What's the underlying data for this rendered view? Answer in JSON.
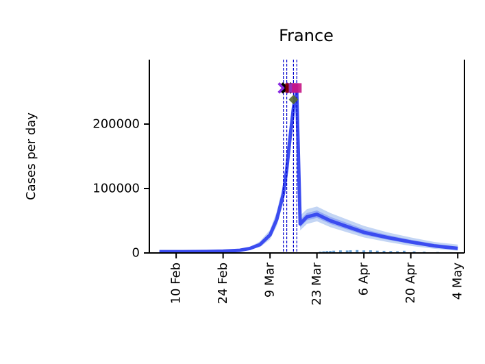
{
  "chart_data": {
    "type": "line",
    "title": "France",
    "xlabel": "",
    "ylabel": "Cases per day",
    "xlim": [
      "2020-02-02",
      "2020-05-06"
    ],
    "ylim": [
      0,
      300000
    ],
    "x_ticks": [
      "2020-02-10",
      "2020-02-24",
      "2020-03-09",
      "2020-03-23",
      "2020-04-06",
      "2020-04-20",
      "2020-05-04"
    ],
    "x_tick_labels": [
      "10 Feb",
      "24 Feb",
      "9 Mar",
      "23 Mar",
      "6 Apr",
      "20 Apr",
      "4 May"
    ],
    "y_ticks": [
      0,
      100000,
      200000
    ],
    "y_tick_labels": [
      "0",
      "100000",
      "200000"
    ],
    "colors": {
      "median_line": "#3b4cf0",
      "inner_band": "#8aa0f5",
      "outer_band": "#bcd0f3",
      "observed_bars": "#6aa3d8",
      "intervention_lines": "#0000cc"
    },
    "series": [
      {
        "x": [
          "2020-02-05",
          "2020-02-12",
          "2020-02-19",
          "2020-02-24",
          "2020-02-29",
          "2020-03-03",
          "2020-03-06",
          "2020-03-09",
          "2020-03-11",
          "2020-03-13",
          "2020-03-14",
          "2020-03-15",
          "2020-03-16",
          "2020-03-17",
          "2020-03-17",
          "2020-03-18",
          "2020-03-20",
          "2020-03-23",
          "2020-03-27",
          "2020-04-01",
          "2020-04-06",
          "2020-04-13",
          "2020-04-20",
          "2020-04-27",
          "2020-05-04"
        ],
        "y": [
          2000,
          2000,
          2200,
          2800,
          4200,
          7000,
          13000,
          28000,
          52000,
          92000,
          130000,
          180000,
          225000,
          250000,
          245000,
          45000,
          56000,
          60000,
          50000,
          41000,
          32000,
          24000,
          17000,
          11000,
          7000
        ],
        "lower": [
          1500,
          1500,
          1600,
          2000,
          3000,
          5000,
          9000,
          21000,
          42000,
          78000,
          110000,
          155000,
          200000,
          230000,
          225000,
          35000,
          45000,
          49000,
          40000,
          32000,
          24000,
          17000,
          11000,
          6500,
          3500
        ],
        "upper": [
          2600,
          2700,
          2900,
          3600,
          5500,
          9500,
          18000,
          36000,
          64000,
          108000,
          150000,
          205000,
          250000,
          272000,
          268000,
          58000,
          68000,
          72000,
          62000,
          52000,
          42000,
          32000,
          24000,
          17000,
          13000
        ]
      },
      {
        "x": [
          "2020-03-24",
          "2020-03-25",
          "2020-03-26",
          "2020-03-27",
          "2020-03-28",
          "2020-03-30",
          "2020-04-01",
          "2020-04-02",
          "2020-04-04",
          "2020-04-06",
          "2020-04-08",
          "2020-04-10",
          "2020-04-12",
          "2020-04-14",
          "2020-04-16",
          "2020-04-18",
          "2020-04-21",
          "2020-04-24",
          "2020-04-28",
          "2020-05-02"
        ],
        "values": [
          2000,
          2500,
          3000,
          3200,
          3500,
          4000,
          3800,
          4200,
          4500,
          3900,
          4100,
          3500,
          3300,
          3000,
          2800,
          3400,
          2600,
          2000,
          1500,
          1200
        ]
      }
    ],
    "intervention_dates": [
      "2020-03-13",
      "2020-03-14",
      "2020-03-16",
      "2020-03-17"
    ],
    "markers": [
      {
        "x": "2020-03-13",
        "y": 256000,
        "color": "#8a2be2",
        "shape": "cross"
      },
      {
        "x": "2020-03-14",
        "y": 256000,
        "color": "#000000",
        "shape": "cross"
      },
      {
        "x": "2020-03-15",
        "y": 256000,
        "color": "#8b0000",
        "shape": "square"
      },
      {
        "x": "2020-03-16",
        "y": 256000,
        "color": "#9932cc",
        "shape": "square"
      },
      {
        "x": "2020-03-17",
        "y": 256000,
        "color": "#c71585",
        "shape": "square"
      },
      {
        "x": "2020-03-16",
        "y": 238000,
        "color": "#556b2f",
        "shape": "diamond"
      }
    ]
  }
}
